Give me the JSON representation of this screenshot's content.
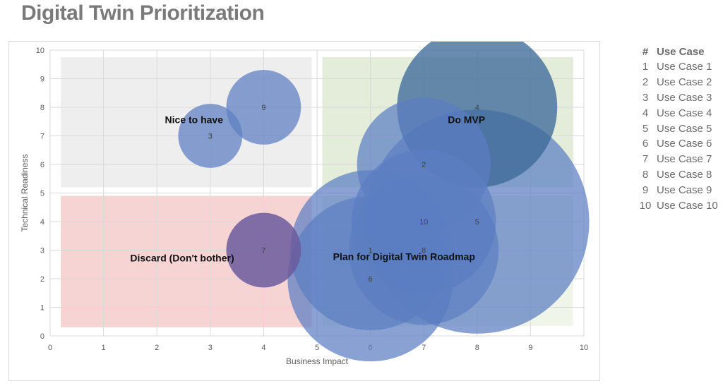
{
  "page_title": "Digital Twin Prioritization",
  "legend": {
    "header_num": "#",
    "header_name": "Use Case",
    "rows": [
      {
        "num": "1",
        "name": "Use Case 1"
      },
      {
        "num": "2",
        "name": "Use Case 2"
      },
      {
        "num": "3",
        "name": "Use Case 3"
      },
      {
        "num": "4",
        "name": "Use Case 4"
      },
      {
        "num": "5",
        "name": "Use Case 5"
      },
      {
        "num": "6",
        "name": "Use Case 6"
      },
      {
        "num": "7",
        "name": "Use Case 7"
      },
      {
        "num": "8",
        "name": "Use Case 8"
      },
      {
        "num": "9",
        "name": "Use Case 9"
      },
      {
        "num": "10",
        "name": "Use Case 10"
      }
    ]
  },
  "chart_data": {
    "type": "scatter",
    "subtype": "bubble",
    "xlabel": "Business Impact",
    "ylabel": "Technical Readiness",
    "xlim": [
      0,
      10
    ],
    "ylim": [
      0,
      10
    ],
    "xticks": [
      "0",
      "1",
      "2",
      "3",
      "4",
      "5",
      "6",
      "7",
      "8",
      "9",
      "10"
    ],
    "yticks": [
      "0",
      "1",
      "2",
      "3",
      "4",
      "5",
      "6",
      "7",
      "8",
      "9",
      "10"
    ],
    "grid": true,
    "points": [
      {
        "label": "1",
        "x": 6,
        "y": 3,
        "size": 3
      },
      {
        "label": "2",
        "x": 7,
        "y": 6,
        "size": 2.5
      },
      {
        "label": "3",
        "x": 3,
        "y": 7,
        "size": 1.2
      },
      {
        "label": "4",
        "x": 8,
        "y": 8,
        "size": 3
      },
      {
        "label": "5",
        "x": 8,
        "y": 4,
        "size": 4.2
      },
      {
        "label": "6",
        "x": 6,
        "y": 2,
        "size": 3.1
      },
      {
        "label": "7",
        "x": 4,
        "y": 3,
        "size": 1.4
      },
      {
        "label": "8",
        "x": 7,
        "y": 3,
        "size": 2.8
      },
      {
        "label": "9",
        "x": 4,
        "y": 8,
        "size": 1.4
      },
      {
        "label": "10",
        "x": 7,
        "y": 4,
        "size": 2.7
      }
    ],
    "quadrants": [
      {
        "name": "Nice to have",
        "x": [
          0.2,
          4.9
        ],
        "y": [
          5.2,
          9.75
        ],
        "color": "#eeeeee"
      },
      {
        "name": "Do MVP",
        "x": [
          5.1,
          9.8
        ],
        "y": [
          5.2,
          9.75
        ],
        "color": "#e3edda"
      },
      {
        "name": "Discard (Don't bother)",
        "x": [
          0.2,
          4.9
        ],
        "y": [
          0.3,
          4.9
        ],
        "color": "#f7d4d4"
      },
      {
        "name": "Plan for Digital Twin Roadmap",
        "x": [
          5.1,
          9.8
        ],
        "y": [
          0.35,
          4.9
        ],
        "color": "#f0f5ea"
      }
    ],
    "annotations": [
      {
        "text": "Nice to have",
        "x": 2.15,
        "y": 7.45
      },
      {
        "text": "Do MVP",
        "x": 7.45,
        "y": 7.45
      },
      {
        "text": "Discard (Don't bother)",
        "x": 1.5,
        "y": 2.6
      },
      {
        "text": "Plan for Digital Twin Roadmap",
        "x": 5.3,
        "y": 2.65
      }
    ],
    "colors": {
      "bubble": "#5b7ec2",
      "bubble_dark": "#3f6a9a",
      "bubble_discard": "#6b5a9c",
      "grid": "#d9d9d9"
    }
  }
}
